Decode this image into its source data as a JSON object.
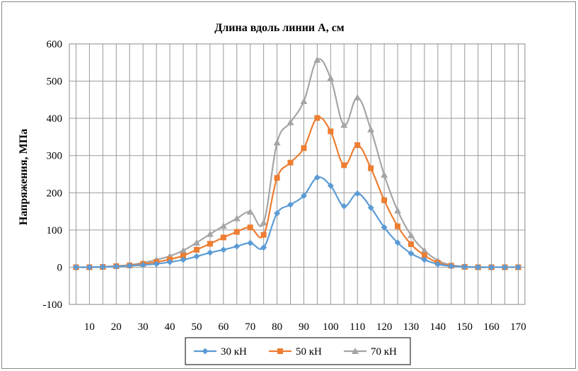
{
  "chart_data": {
    "type": "line",
    "title": "Длина вдоль линии А, см",
    "xlabel": "",
    "ylabel": "Напряжения, МПа",
    "x": [
      5,
      10,
      15,
      20,
      25,
      30,
      35,
      40,
      45,
      50,
      55,
      60,
      65,
      70,
      75,
      80,
      85,
      90,
      95,
      100,
      105,
      110,
      115,
      120,
      125,
      130,
      135,
      140,
      145,
      150,
      155,
      160,
      165,
      170
    ],
    "x_tick_labels": [
      "10",
      "20",
      "30",
      "40",
      "50",
      "60",
      "70",
      "80",
      "90",
      "100",
      "110",
      "120",
      "130",
      "140",
      "150",
      "160",
      "170"
    ],
    "x_tick_values": [
      10,
      20,
      30,
      40,
      50,
      60,
      70,
      80,
      90,
      100,
      110,
      120,
      130,
      140,
      150,
      160,
      170
    ],
    "xlim": [
      2.5,
      172.5
    ],
    "ylim": [
      -100,
      600
    ],
    "y_ticks": [
      -100,
      0,
      100,
      200,
      300,
      400,
      500,
      600
    ],
    "grid": true,
    "legend_position": "bottom",
    "series": [
      {
        "name": "30 кН",
        "color": "#5B9BD5",
        "marker": "diamond",
        "values": [
          0,
          0,
          1,
          2,
          4,
          6,
          9,
          14,
          20,
          29,
          39,
          47,
          56,
          65,
          53,
          145,
          168,
          192,
          241,
          219,
          164,
          198,
          160,
          107,
          66,
          37,
          20,
          8,
          3,
          1,
          0,
          0,
          0,
          0
        ]
      },
      {
        "name": "50 кН",
        "color": "#ED7D31",
        "marker": "square",
        "values": [
          0,
          0,
          1,
          3,
          5,
          9,
          14,
          21,
          31,
          47,
          63,
          80,
          95,
          107,
          87,
          240,
          281,
          320,
          401,
          365,
          274,
          328,
          266,
          180,
          110,
          62,
          32,
          12,
          4,
          1,
          0,
          0,
          0,
          0
        ]
      },
      {
        "name": "70 кН",
        "color": "#A5A5A5",
        "marker": "triangle",
        "values": [
          0,
          0,
          1,
          3,
          6,
          12,
          20,
          30,
          45,
          66,
          89,
          111,
          131,
          149,
          120,
          335,
          389,
          446,
          557,
          508,
          382,
          456,
          370,
          248,
          152,
          86,
          45,
          18,
          6,
          2,
          0,
          0,
          0,
          0
        ]
      }
    ]
  }
}
